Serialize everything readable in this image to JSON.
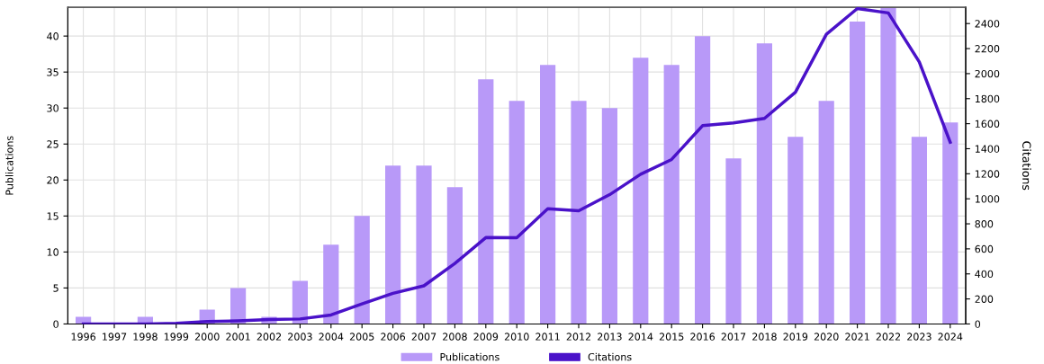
{
  "chart_data": {
    "type": "bar",
    "categories": [
      "1996",
      "1997",
      "1998",
      "1999",
      "2000",
      "2001",
      "2002",
      "2003",
      "2004",
      "2005",
      "2006",
      "2007",
      "2008",
      "2009",
      "2010",
      "2011",
      "2012",
      "2013",
      "2014",
      "2015",
      "2016",
      "2017",
      "2018",
      "2019",
      "2020",
      "2021",
      "2022",
      "2023",
      "2024"
    ],
    "series": [
      {
        "name": "Publications",
        "color": "#b899f8",
        "values": [
          1,
          0,
          1,
          0,
          2,
          5,
          1,
          6,
          11,
          15,
          22,
          22,
          19,
          34,
          31,
          36,
          31,
          30,
          37,
          36,
          40,
          23,
          39,
          26,
          31,
          42,
          44,
          26,
          28
        ]
      },
      {
        "name": "Citations",
        "type": "line",
        "axis": "y2",
        "color": "#4a12c9",
        "values": [
          0,
          0,
          0,
          5,
          20,
          25,
          35,
          40,
          72,
          160,
          245,
          305,
          483,
          690,
          689,
          920,
          904,
          1033,
          1196,
          1314,
          1584,
          1606,
          1642,
          1851,
          2314,
          2520,
          2485,
          2094,
          1452
        ]
      }
    ],
    "ylabel": "Publications",
    "y2label": "Citations",
    "ylim": [
      0,
      44
    ],
    "yticks": [
      0,
      5,
      10,
      15,
      20,
      25,
      30,
      35,
      40
    ],
    "y2lim": [
      0,
      2530
    ],
    "y2ticks": [
      0,
      200,
      400,
      600,
      800,
      1000,
      1200,
      1400,
      1600,
      1800,
      2000,
      2200,
      2400
    ],
    "grid": true,
    "legend": "bottom",
    "marker": "none",
    "line_style": "solid"
  }
}
